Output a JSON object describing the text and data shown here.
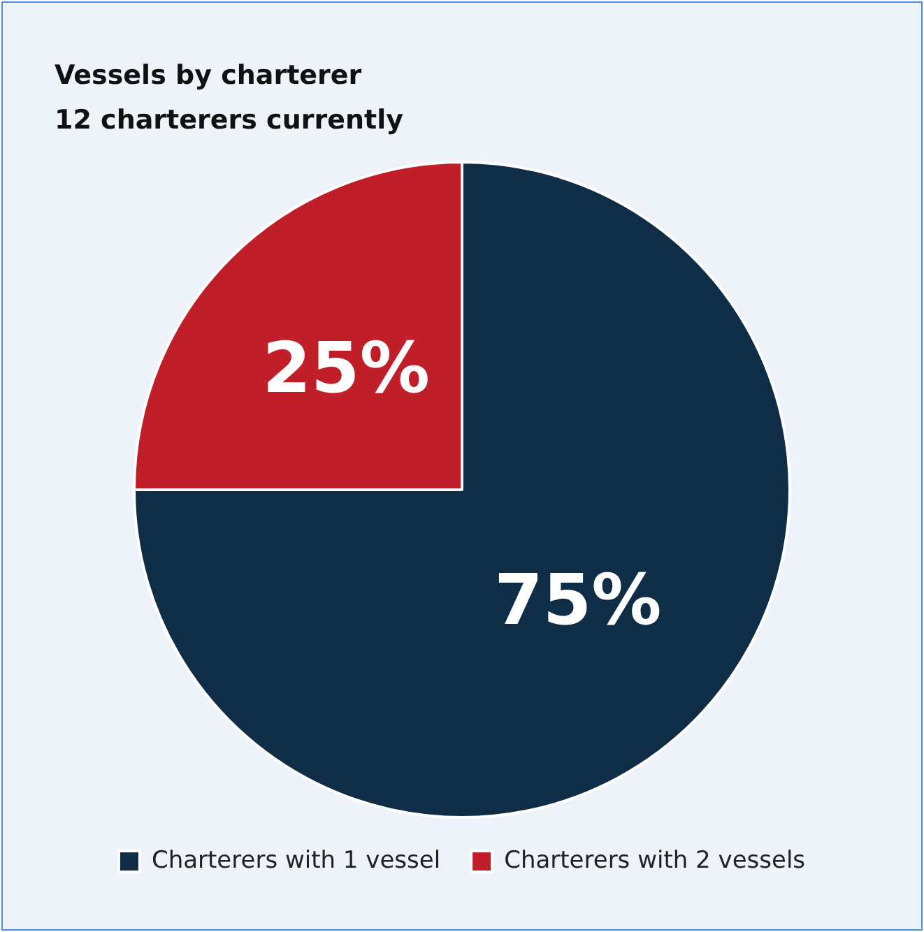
{
  "chart_data": {
    "type": "pie",
    "title": "Vessels by charterer",
    "subtitle": "12 charterers currently",
    "categories": [
      "Charterers with 1 vessel",
      "Charterers with 2 vessels"
    ],
    "values": [
      75,
      25
    ],
    "colors": [
      "#0f2d47",
      "#c01f2a"
    ],
    "value_labels": [
      "75%",
      "25%"
    ],
    "legend": "bottom"
  }
}
